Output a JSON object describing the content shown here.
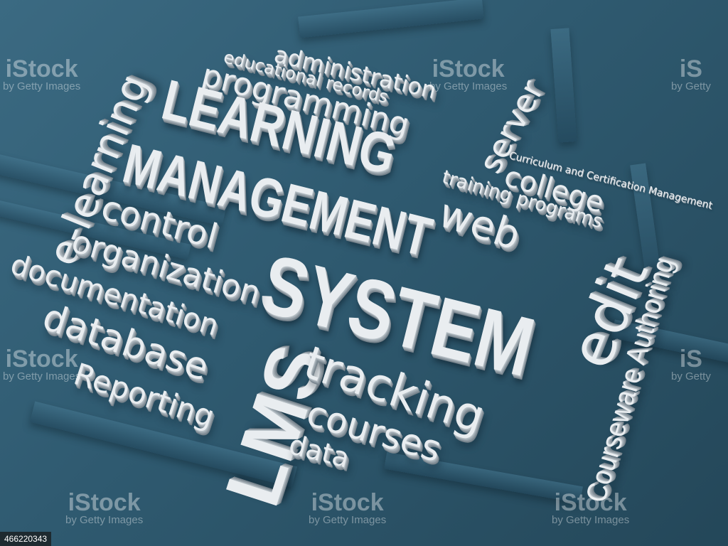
{
  "words": {
    "administration": "administration",
    "educational_records": "educational records",
    "programming": "programming",
    "server": "server",
    "learning": "LEARNING",
    "management": "MANAGEMENT",
    "system": "SYSTEM",
    "e_learning": "e-learning",
    "control": "control",
    "organization": "organization",
    "documentation": "documentation",
    "database": "database",
    "reporting": "Reporting",
    "lms": "LMS",
    "tracking": "tracking",
    "courses": "courses",
    "data": "data",
    "curriculum": "Curriculum and Certification Management",
    "college": "college",
    "training_programs": "training programs",
    "web": "web",
    "edit": "edit",
    "courseware_authoring": "Courseware Authoring"
  },
  "watermark": {
    "logo_full": "iStock",
    "by_line_full": "by Getty Images",
    "logo_short": "iS",
    "by_line_short": "by Getty"
  },
  "image_id": "466220343",
  "colors": {
    "background": "#2f5a70",
    "text": "#e9edf0"
  }
}
